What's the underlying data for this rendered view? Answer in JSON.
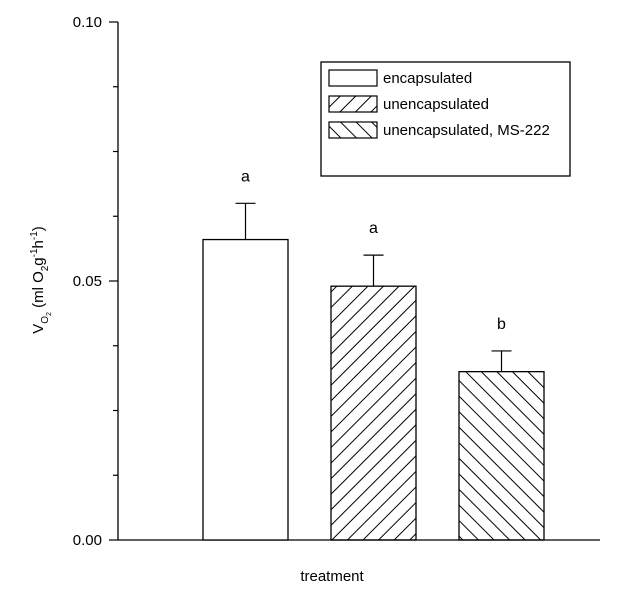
{
  "chart_data": {
    "type": "bar",
    "xlabel": "treatment",
    "ylabel": {
      "text_before_sub": "V",
      "subscript": "O",
      "subsubscript": "2",
      "text_main": " (ml O",
      "o2_sub": "2",
      "g_text": "g",
      "g_sup": "-1",
      "h_text": "h",
      "h_sup": "-1",
      "close": ")"
    },
    "ylim": [
      0,
      0.1
    ],
    "yticks": [
      {
        "value": 0.0,
        "label": "0.00"
      },
      {
        "value": 0.05,
        "label": "0.05"
      },
      {
        "value": 0.1,
        "label": "0.10"
      }
    ],
    "grid": false,
    "legend_position": "top-right",
    "series": [
      {
        "name": "encapsulated",
        "value": 0.058,
        "error": 0.007,
        "letter": "a",
        "fill": "none"
      },
      {
        "name": "unencapsulated",
        "value": 0.049,
        "error": 0.006,
        "letter": "a",
        "fill": "hatch-forward"
      },
      {
        "name": "unencapsulated, MS-222",
        "value": 0.0325,
        "error": 0.004,
        "letter": "b",
        "fill": "hatch-backward"
      }
    ]
  }
}
